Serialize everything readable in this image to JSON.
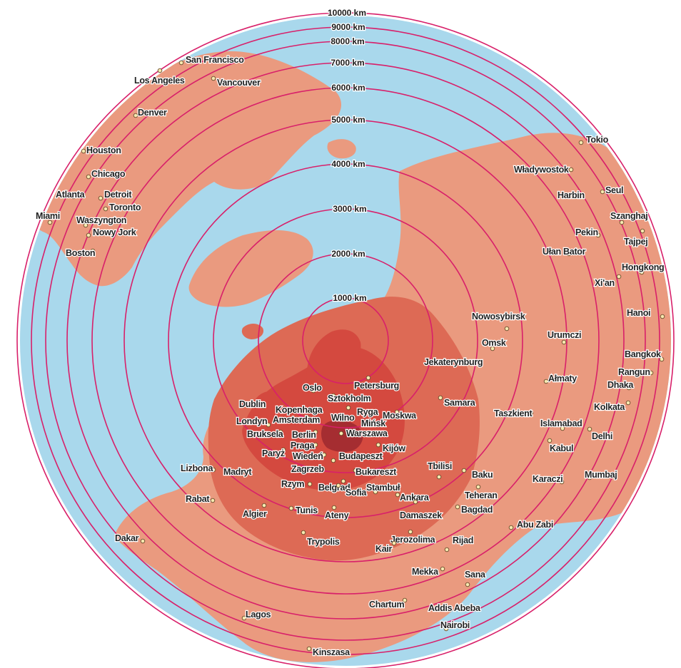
{
  "colors": {
    "ocean": "#a9d8ec",
    "land_far": "#ea9a7f",
    "land_mid": "#dd6a55",
    "land_near": "#d4493f",
    "poland": "#a52d31",
    "ring": "#d8206a"
  },
  "rings": [
    {
      "label": "1000 km",
      "km": 1000
    },
    {
      "label": "2000 km",
      "km": 2000
    },
    {
      "label": "3000 km",
      "km": 3000
    },
    {
      "label": "4000 km",
      "km": 4000
    },
    {
      "label": "5000 km",
      "km": 5000
    },
    {
      "label": "6000 km",
      "km": 6000
    },
    {
      "label": "7000 km",
      "km": 7000
    },
    {
      "label": "8000 km",
      "km": 8000
    },
    {
      "label": "9000 km",
      "km": 9000
    },
    {
      "label": "10000 km",
      "km": 10000
    }
  ],
  "cities": [
    {
      "name": "San Francisco"
    },
    {
      "name": "Los Angeles"
    },
    {
      "name": "Vancouver"
    },
    {
      "name": "Denver"
    },
    {
      "name": "Houston"
    },
    {
      "name": "Chicago"
    },
    {
      "name": "Atlanta"
    },
    {
      "name": "Detroit"
    },
    {
      "name": "Toronto"
    },
    {
      "name": "Miami"
    },
    {
      "name": "Waszyngton"
    },
    {
      "name": "Nowy Jork"
    },
    {
      "name": "Boston"
    },
    {
      "name": "Tokio"
    },
    {
      "name": "Władywostok"
    },
    {
      "name": "Seul"
    },
    {
      "name": "Harbin"
    },
    {
      "name": "Szanghaj"
    },
    {
      "name": "Pekin"
    },
    {
      "name": "Tajpej"
    },
    {
      "name": "Ułan Bator"
    },
    {
      "name": "Hongkong"
    },
    {
      "name": "Xi'an"
    },
    {
      "name": "Hanoi"
    },
    {
      "name": "Nowosybirsk"
    },
    {
      "name": "Omsk"
    },
    {
      "name": "Urumczi"
    },
    {
      "name": "Bangkok"
    },
    {
      "name": "Rangun"
    },
    {
      "name": "Dhaka"
    },
    {
      "name": "Jekaterynburg"
    },
    {
      "name": "Ałmaty"
    },
    {
      "name": "Kolkata"
    },
    {
      "name": "Petersburg"
    },
    {
      "name": "Samara"
    },
    {
      "name": "Oslo"
    },
    {
      "name": "Sztokholm"
    },
    {
      "name": "Dublin"
    },
    {
      "name": "Kopenhaga"
    },
    {
      "name": "Ryga"
    },
    {
      "name": "Moskwa"
    },
    {
      "name": "Taszkient"
    },
    {
      "name": "Londyn"
    },
    {
      "name": "Amsterdam"
    },
    {
      "name": "Wilno"
    },
    {
      "name": "Mińsk"
    },
    {
      "name": "Islamabad"
    },
    {
      "name": "Bruksela"
    },
    {
      "name": "Berlin"
    },
    {
      "name": "Warszawa"
    },
    {
      "name": "Delhi"
    },
    {
      "name": "Paryż"
    },
    {
      "name": "Praga"
    },
    {
      "name": "Kijów"
    },
    {
      "name": "Kabul"
    },
    {
      "name": "Wiedeń"
    },
    {
      "name": "Budapeszt"
    },
    {
      "name": "Lizbona"
    },
    {
      "name": "Madryt"
    },
    {
      "name": "Zagrzeb"
    },
    {
      "name": "Bukareszt"
    },
    {
      "name": "Tbilisi"
    },
    {
      "name": "Baku"
    },
    {
      "name": "Mumbaj"
    },
    {
      "name": "Karaczi"
    },
    {
      "name": "Rzym"
    },
    {
      "name": "Belgrad"
    },
    {
      "name": "Sofia"
    },
    {
      "name": "Stambuł"
    },
    {
      "name": "Rabat"
    },
    {
      "name": "Teheran"
    },
    {
      "name": "Ankara"
    },
    {
      "name": "Algier"
    },
    {
      "name": "Tunis"
    },
    {
      "name": "Damaszek"
    },
    {
      "name": "Bagdad"
    },
    {
      "name": "Ateny"
    },
    {
      "name": "Abu Zabi"
    },
    {
      "name": "Dakar"
    },
    {
      "name": "Jerozolima"
    },
    {
      "name": "Trypolis"
    },
    {
      "name": "Kair"
    },
    {
      "name": "Rijad"
    },
    {
      "name": "Mekka"
    },
    {
      "name": "Sana"
    },
    {
      "name": "Chartum"
    },
    {
      "name": "Addis Abeba"
    },
    {
      "name": "Lagos"
    },
    {
      "name": "Nairobi"
    },
    {
      "name": "Kinszasa"
    }
  ]
}
